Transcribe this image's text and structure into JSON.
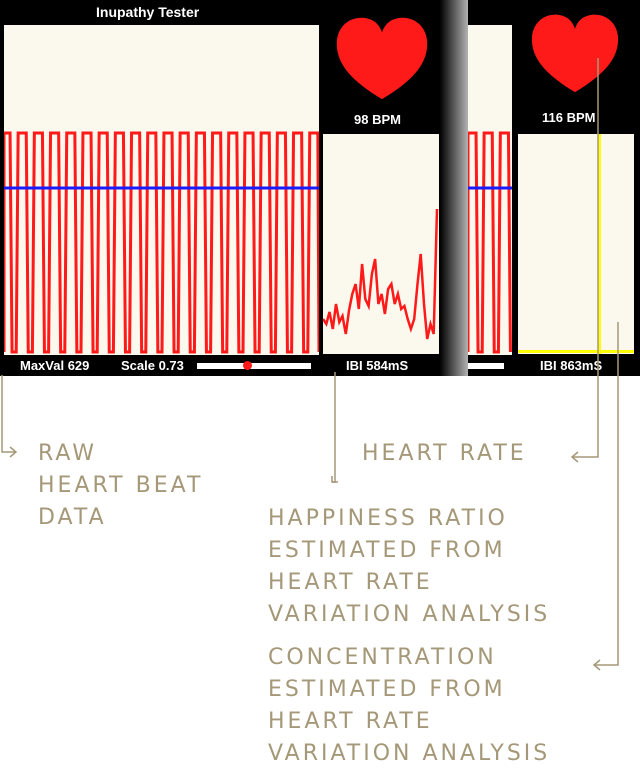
{
  "left_screen": {
    "title": "Inupathy Tester",
    "bpm": "98 BPM",
    "maxval": "MaxVal 629",
    "scale": "Scale 0.73",
    "ibi": "IBI 584mS",
    "colors": {
      "trace": "#ff1a1a",
      "baseline": "#1a1aff",
      "panel": "#fbf8ee",
      "heart": "#ff1a1a"
    }
  },
  "right_screen": {
    "bpm": "116 BPM",
    "ibi": "IBI 863mS",
    "colors": {
      "bar": "#ffff00"
    }
  },
  "captions": {
    "raw": "RAW\nHEART BEAT\nDATA",
    "heart_rate": "HEART RATE",
    "happiness": "HAPPINESS RATIO\nESTIMATED FROM\nHEART RATE\nVARIATION ANALYSIS",
    "concentration": "CONCENTRATION\nESTIMATED FROM\nHEART RATE\nVARIATION ANALYSIS"
  }
}
